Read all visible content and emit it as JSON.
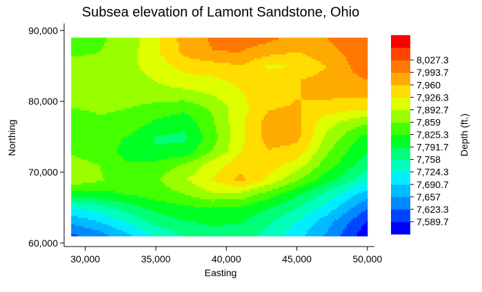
{
  "chart_data": {
    "type": "heatmap",
    "title": "Subsea elevation of Lamont Sandstone, Ohio",
    "xlabel": "Easting",
    "ylabel": "Northing",
    "xlim": [
      29000,
      50000
    ],
    "ylim": [
      61000,
      89000
    ],
    "xticks": [
      {
        "value": 30000,
        "label": "30,000"
      },
      {
        "value": 35000,
        "label": "35,000"
      },
      {
        "value": 40000,
        "label": "40,000"
      },
      {
        "value": 45000,
        "label": "45,000"
      },
      {
        "value": 50000,
        "label": "50,000"
      }
    ],
    "yticks": [
      {
        "value": 60000,
        "label": "60,000"
      },
      {
        "value": 70000,
        "label": "70,000"
      },
      {
        "value": 80000,
        "label": "80,000"
      },
      {
        "value": 90000,
        "label": "90,000"
      }
    ],
    "x": [
      29000,
      31000,
      33000,
      35000,
      37000,
      39000,
      41000,
      43000,
      45000,
      47000,
      49000,
      50000
    ],
    "y": [
      61000,
      63000,
      65000,
      67000,
      69000,
      71000,
      73000,
      75000,
      77000,
      79000,
      81000,
      83000,
      85000,
      87000,
      89000
    ],
    "z": [
      [
        7630,
        7655,
        7700,
        7745,
        7775,
        7790,
        7790,
        7760,
        7720,
        7670,
        7610,
        7580
      ],
      [
        7680,
        7705,
        7745,
        7785,
        7805,
        7815,
        7810,
        7780,
        7740,
        7690,
        7630,
        7600
      ],
      [
        7740,
        7760,
        7790,
        7820,
        7835,
        7840,
        7835,
        7810,
        7775,
        7730,
        7670,
        7640
      ],
      [
        7820,
        7830,
        7845,
        7860,
        7875,
        7905,
        7900,
        7860,
        7815,
        7770,
        7715,
        7690
      ],
      [
        7905,
        7880,
        7855,
        7870,
        7905,
        7945,
        7985,
        7935,
        7880,
        7825,
        7775,
        7750
      ],
      [
        7890,
        7875,
        7845,
        7855,
        7880,
        7925,
        7965,
        7960,
        7925,
        7860,
        7810,
        7785
      ],
      [
        7870,
        7860,
        7830,
        7810,
        7820,
        7875,
        7940,
        7975,
        7965,
        7885,
        7830,
        7810
      ],
      [
        7865,
        7855,
        7840,
        7805,
        7800,
        7860,
        7935,
        7990,
        7985,
        7905,
        7850,
        7830
      ],
      [
        7850,
        7870,
        7865,
        7835,
        7820,
        7870,
        7935,
        7990,
        7985,
        7925,
        7890,
        7880
      ],
      [
        7875,
        7880,
        7875,
        7860,
        7850,
        7880,
        7930,
        7975,
        7980,
        7960,
        7950,
        7945
      ],
      [
        7890,
        7895,
        7895,
        7895,
        7895,
        7910,
        7940,
        7960,
        7975,
        7985,
        7985,
        7985
      ],
      [
        7885,
        7890,
        7895,
        7910,
        7930,
        7935,
        7950,
        7965,
        7975,
        7990,
        8005,
        8010
      ],
      [
        7885,
        7890,
        7900,
        7925,
        7955,
        7960,
        7975,
        7935,
        7945,
        7975,
        8015,
        8025
      ],
      [
        7870,
        7875,
        7895,
        7935,
        7985,
        8010,
        8010,
        7990,
        7975,
        8000,
        8020,
        8030
      ],
      [
        7865,
        7870,
        7890,
        7935,
        7990,
        8015,
        8030,
        8020,
        8000,
        8010,
        8025,
        8035
      ]
    ],
    "levels": [
      7573,
      7606.3,
      7640,
      7673.7,
      7707.7,
      7741.7,
      7775,
      7808.3,
      7842,
      7875.7,
      7909.7,
      7943,
      7976.7,
      8010.7,
      8045
    ],
    "colors": [
      "#0000ff",
      "#0044ff",
      "#0088ff",
      "#00bbff",
      "#00eeff",
      "#00ffbb",
      "#00ff77",
      "#00ff22",
      "#44ff00",
      "#99ff00",
      "#ddff00",
      "#ffdd00",
      "#ffaa00",
      "#ff7700",
      "#ff4400",
      "#ff0000"
    ],
    "colorbar": {
      "label": "Depth (ft.)",
      "tick_labels": [
        "7,589.7",
        "7,623.3",
        "7,657",
        "7,690.7",
        "7,724.3",
        "7,758",
        "7,791.7",
        "7,825.3",
        "7,859",
        "7,892.7",
        "7,926.3",
        "7,960",
        "7,993.7",
        "8,027.3"
      ],
      "segment_colors": [
        "#0000ff",
        "#0044ff",
        "#0088ff",
        "#00bbff",
        "#00eeff",
        "#00ffbb",
        "#00ff77",
        "#00ff22",
        "#44ff00",
        "#99ff00",
        "#ddff00",
        "#ffdd00",
        "#ffaa00",
        "#ff7700",
        "#ff4400",
        "#ff0000"
      ]
    },
    "grid": false
  }
}
